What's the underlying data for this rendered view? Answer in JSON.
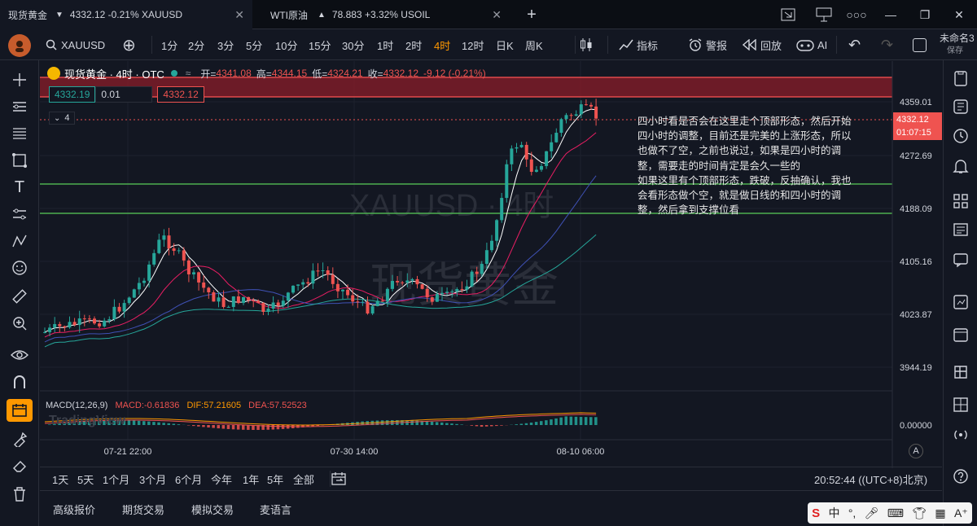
{
  "tabs": [
    {
      "label": "现货黄金",
      "arrow": "▼",
      "quote": "4332.12 -0.21% XAUUSD",
      "active": true
    },
    {
      "label": "WTI原油",
      "arrow": "▲",
      "quote": "78.883 +3.32% USOIL",
      "active": false
    }
  ],
  "toolbar": {
    "symbol": "XAUUSD",
    "intervals": [
      "1分",
      "2分",
      "3分",
      "5分",
      "10分",
      "15分",
      "30分",
      "1时",
      "2时",
      "4时",
      "12时",
      "日K",
      "周K"
    ],
    "selected_interval": "4时",
    "indicators": "指标",
    "alert": "警报",
    "replay": "回放",
    "ai": "AI",
    "title": "未命名3",
    "save": "保存"
  },
  "legend": {
    "name": "现货黄金 · 4时 · OTC",
    "open_label": "开=",
    "open": "4341.08",
    "high_label": "高=",
    "high": "4344.15",
    "low_label": "低=",
    "low": "4324.21",
    "close_label": "收=",
    "close": "4332.12",
    "change": "-9.12 (-0.21%)",
    "bid": "4332.19",
    "spread": "0.01",
    "ask": "4332.12",
    "layers": "4"
  },
  "watermark": {
    "symbol": "XAUUSD · 4时",
    "name": "现货黄金"
  },
  "note": "四小时看是否会在这里走个顶部形态，然后开始\n四小时的调整，目前还是完美的上涨形态，所以\n也做不了空，之前也说过，如果是四小时的调\n整，需要走的时间肯定是会久一些的\n如果这里有个顶部形态，跌破，反抽确认，我也\n会看形态做个空，就是做日线的和四小时的调\n整，然后拿到支撑位看",
  "price_axis": {
    "labels": [
      "4359.01",
      "4272.69",
      "4188.09",
      "4105.16",
      "4023.87",
      "3944.19"
    ],
    "current": "4332.12",
    "countdown": "01:07:15"
  },
  "macd": {
    "label": "MACD(12,26,9)",
    "macd_label": "MACD:",
    "macd": "-0.61836",
    "dif_label": "DIF:",
    "dif": "57.21605",
    "dea_label": "DEA:",
    "dea": "57.52523",
    "axis_value": "0.00000",
    "logo": "TradingView"
  },
  "time_axis": [
    "07-21 22:00",
    "07-30 14:00",
    "08-10 06:00"
  ],
  "ranges": [
    "1天",
    "5天",
    "1个月",
    "3个月",
    "6个月",
    "今年",
    "1年",
    "5年",
    "全部"
  ],
  "clock": "20:52:44 ((UTC+8)北京)",
  "footer": [
    "高级报价",
    "期货交易",
    "模拟交易",
    "麦语言"
  ],
  "ime": {
    "logo": "S",
    "lang": "中"
  },
  "colors": {
    "up": "#26a69a",
    "down": "#ef5350",
    "accent": "#ff9800",
    "zone": "#8b1e2a",
    "support": "#4caf50"
  }
}
